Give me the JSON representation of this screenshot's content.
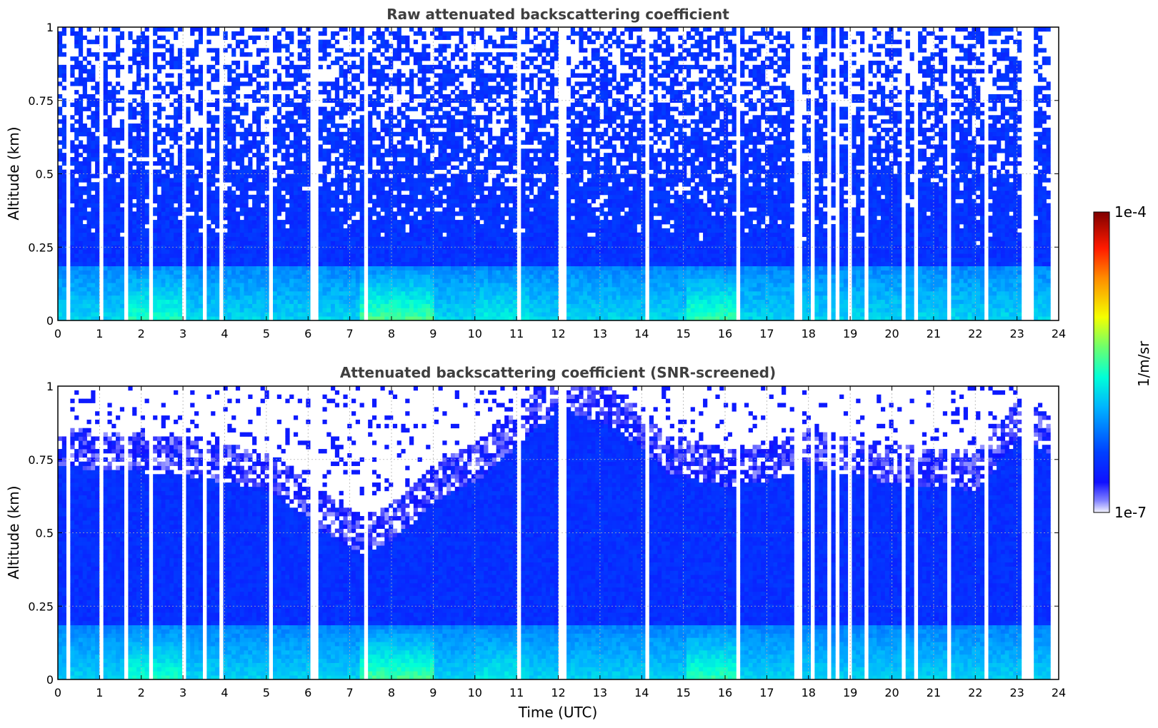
{
  "chart_data": [
    {
      "id": "raw",
      "type": "heatmap",
      "title": "Raw attenuated backscattering coefficient",
      "ylabel": "Altitude (km)",
      "xlabel": "",
      "xlim": [
        0,
        24
      ],
      "ylim": [
        0,
        1
      ],
      "xticks": [
        0,
        1,
        2,
        3,
        4,
        5,
        6,
        7,
        8,
        9,
        10,
        11,
        12,
        13,
        14,
        15,
        16,
        17,
        18,
        19,
        20,
        21,
        22,
        23,
        24
      ],
      "yticks": [
        0,
        0.25,
        0.5,
        0.75,
        1
      ],
      "ytick_labels": [
        "0",
        "0.25",
        "0.5",
        "0.75",
        "1"
      ],
      "grid": true,
      "data_end_hour": 23.8,
      "screened": false
    },
    {
      "id": "screened",
      "type": "heatmap",
      "title": "Attenuated backscattering coefficient (SNR-screened)",
      "ylabel": "Altitude (km)",
      "xlabel": "Time (UTC)",
      "xlim": [
        0,
        24
      ],
      "ylim": [
        0,
        1
      ],
      "xticks": [
        0,
        1,
        2,
        3,
        4,
        5,
        6,
        7,
        8,
        9,
        10,
        11,
        12,
        13,
        14,
        15,
        16,
        17,
        18,
        19,
        20,
        21,
        22,
        23,
        24
      ],
      "yticks": [
        0,
        0.25,
        0.5,
        0.75,
        1
      ],
      "ytick_labels": [
        "0",
        "0.25",
        "0.5",
        "0.75",
        "1"
      ],
      "grid": true,
      "data_end_hour": 23.8,
      "screened": true
    }
  ],
  "colorbar": {
    "label": "1/m/sr",
    "max_label": "1e-4",
    "min_label": "1e-7",
    "colormap": [
      "#ffffff",
      "#0000ff",
      "#00e5ff",
      "#ffff00",
      "#ff0000",
      "#7f0000"
    ]
  }
}
